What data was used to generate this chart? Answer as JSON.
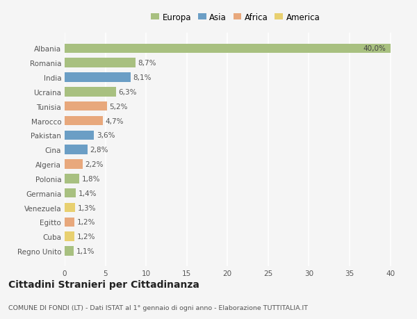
{
  "countries": [
    "Albania",
    "Romania",
    "India",
    "Ucraina",
    "Tunisia",
    "Marocco",
    "Pakistan",
    "Cina",
    "Algeria",
    "Polonia",
    "Germania",
    "Venezuela",
    "Egitto",
    "Cuba",
    "Regno Unito"
  ],
  "values": [
    40.0,
    8.7,
    8.1,
    6.3,
    5.2,
    4.7,
    3.6,
    2.8,
    2.2,
    1.8,
    1.4,
    1.3,
    1.2,
    1.2,
    1.1
  ],
  "labels": [
    "40,0%",
    "8,7%",
    "8,1%",
    "6,3%",
    "5,2%",
    "4,7%",
    "3,6%",
    "2,8%",
    "2,2%",
    "1,8%",
    "1,4%",
    "1,3%",
    "1,2%",
    "1,2%",
    "1,1%"
  ],
  "continents": [
    "Europa",
    "Europa",
    "Asia",
    "Europa",
    "Africa",
    "Africa",
    "Asia",
    "Asia",
    "Africa",
    "Europa",
    "Europa",
    "America",
    "Africa",
    "America",
    "Europa"
  ],
  "colors": {
    "Europa": "#a8c080",
    "Asia": "#6b9ec5",
    "Africa": "#e8a87c",
    "America": "#e8d070"
  },
  "title": "Cittadini Stranieri per Cittadinanza",
  "subtitle": "COMUNE DI FONDI (LT) - Dati ISTAT al 1° gennaio di ogni anno - Elaborazione TUTTITALIA.IT",
  "xlim": [
    0,
    42
  ],
  "xticks": [
    0,
    5,
    10,
    15,
    20,
    25,
    30,
    35,
    40
  ],
  "background_color": "#f5f5f5",
  "grid_color": "#ffffff",
  "bar_height": 0.65,
  "legend_entries": [
    "Europa",
    "Asia",
    "Africa",
    "America"
  ]
}
